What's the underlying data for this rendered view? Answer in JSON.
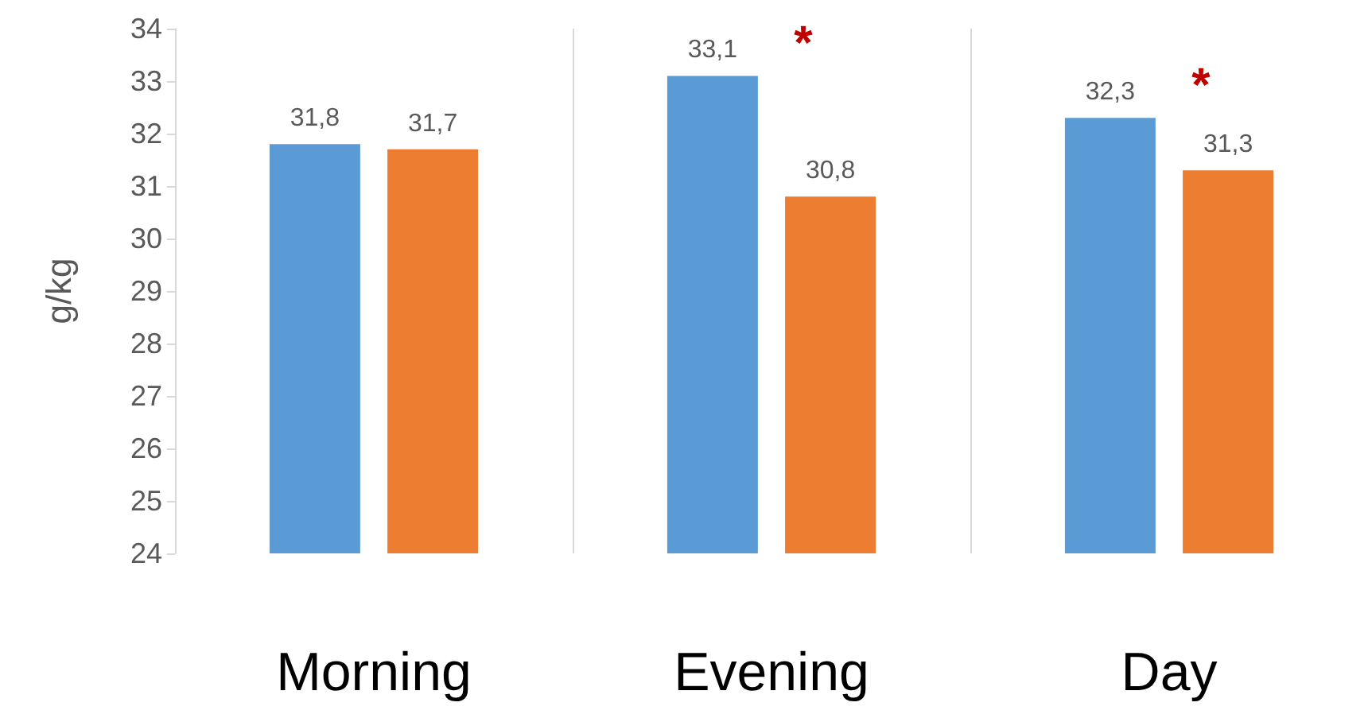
{
  "chart_data": {
    "type": "bar",
    "ylabel": "g/kg",
    "categories": [
      "Morning",
      "Evening",
      "Day"
    ],
    "series": [
      {
        "color": "#5b9bd5",
        "values": [
          31.8,
          33.1,
          32.3
        ],
        "value_labels": [
          "31,8",
          "33,1",
          "32,3"
        ]
      },
      {
        "color": "#ed7d31",
        "values": [
          31.7,
          30.8,
          31.3
        ],
        "value_labels": [
          "31,7",
          "30,8",
          "31,3"
        ]
      }
    ],
    "ylim": [
      24,
      34
    ],
    "yticks": [
      24,
      25,
      26,
      27,
      28,
      29,
      30,
      31,
      32,
      33,
      34
    ],
    "grid": "x",
    "annotations": [
      "*",
      "*"
    ]
  }
}
